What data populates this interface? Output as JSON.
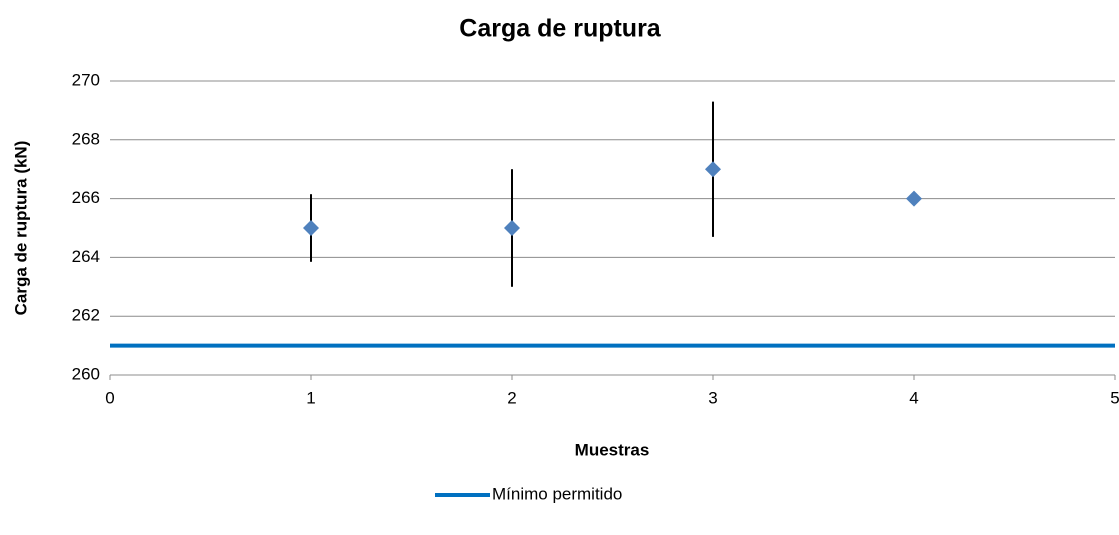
{
  "chart_data": {
    "type": "scatter",
    "title": "Carga de ruptura",
    "x_label": "Muestras",
    "y_label": "Carga de ruptura (kN)",
    "xlim": [
      0,
      5
    ],
    "xticks": [
      0,
      1,
      2,
      3,
      4,
      5
    ],
    "ylim": [
      260,
      270
    ],
    "yticks": [
      260,
      262,
      264,
      266,
      268,
      270
    ],
    "grid": true,
    "legend": "bottom",
    "series": [
      {
        "type": "scatter",
        "color": "#4f81bd",
        "x": [
          1,
          2,
          3,
          4
        ],
        "values": [
          265,
          265,
          267,
          266
        ],
        "errors": [
          1.15,
          2,
          2.3,
          null
        ]
      },
      {
        "name": "Mínimo permitido",
        "type": "line",
        "color": "#0070c0",
        "x": [
          0,
          5
        ],
        "values": [
          261,
          261
        ]
      }
    ]
  }
}
